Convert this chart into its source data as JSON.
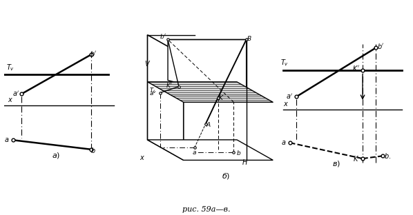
{
  "title": "рис. 59а—в.",
  "bg_color": "#ffffff",
  "lc": "#000000",
  "figsize": [
    5.98,
    3.12
  ],
  "dpi": 100
}
